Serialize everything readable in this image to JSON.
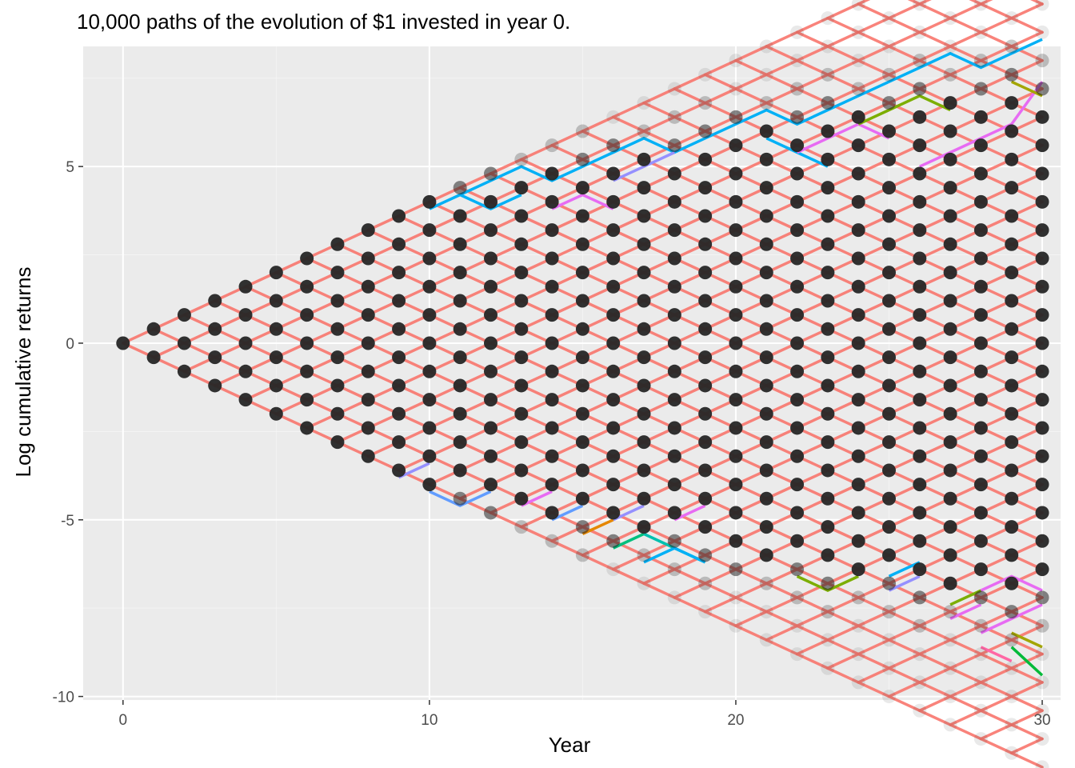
{
  "chart_data": {
    "type": "line",
    "title": "10,000 paths of the evolution of $1 invested in year 0.",
    "xlabel": "Year",
    "ylabel": "Log cumulative returns",
    "xlim": [
      -1.3,
      30.6
    ],
    "ylim": [
      -10.1,
      8.4
    ],
    "x_ticks": [
      0,
      10,
      20,
      30
    ],
    "y_ticks": [
      -10,
      -5,
      0,
      5
    ],
    "x_tick_labels": [
      "0",
      "10",
      "20",
      "30"
    ],
    "y_tick_labels": [
      "-10",
      "-5",
      "0",
      "5"
    ],
    "grid": true,
    "legend": "none",
    "step_per_year": 0.4,
    "years": 30,
    "colors": {
      "panel": "#ebebeb",
      "grid_major": "#ffffff",
      "lattice_line": "#f8766d",
      "point_dark": "#262626"
    },
    "series": [
      {
        "color": "#00b0f6",
        "points": [
          [
            10,
            3.8
          ],
          [
            11,
            4.2
          ],
          [
            12,
            4.6
          ],
          [
            13,
            5.0
          ],
          [
            14,
            4.6
          ],
          [
            15,
            5.0
          ],
          [
            16,
            5.4
          ],
          [
            17,
            5.8
          ],
          [
            18,
            5.4
          ],
          [
            19,
            5.8
          ],
          [
            20,
            6.2
          ],
          [
            21,
            6.6
          ],
          [
            22,
            6.2
          ],
          [
            23,
            6.6
          ],
          [
            24,
            7.0
          ],
          [
            25,
            7.4
          ],
          [
            26,
            7.8
          ],
          [
            27,
            8.2
          ],
          [
            28,
            7.8
          ],
          [
            29,
            8.2
          ],
          [
            30,
            8.6
          ]
        ]
      },
      {
        "color": "#00b0f6",
        "points": [
          [
            11,
            4.2
          ],
          [
            12,
            3.8
          ],
          [
            13,
            4.2
          ]
        ]
      },
      {
        "color": "#00b0f6",
        "points": [
          [
            21,
            5.8
          ],
          [
            22,
            5.4
          ],
          [
            23,
            5.0
          ]
        ]
      },
      {
        "color": "#e76bf3",
        "points": [
          [
            14,
            3.8
          ],
          [
            15,
            4.2
          ],
          [
            16,
            3.8
          ]
        ]
      },
      {
        "color": "#9590ff",
        "points": [
          [
            16,
            4.6
          ],
          [
            17,
            5.0
          ],
          [
            18,
            5.4
          ]
        ]
      },
      {
        "color": "#e76bf3",
        "points": [
          [
            22,
            5.4
          ],
          [
            23,
            5.8
          ],
          [
            24,
            6.2
          ],
          [
            25,
            5.8
          ]
        ]
      },
      {
        "color": "#7cae00",
        "points": [
          [
            24,
            6.2
          ],
          [
            25,
            6.6
          ],
          [
            26,
            7.0
          ],
          [
            27,
            6.6
          ]
        ]
      },
      {
        "color": "#e76bf3",
        "points": [
          [
            26,
            5.0
          ],
          [
            27,
            5.4
          ],
          [
            28,
            5.8
          ],
          [
            29,
            6.2
          ],
          [
            30,
            7.4
          ]
        ]
      },
      {
        "color": "#a3a500",
        "points": [
          [
            29,
            7.4
          ],
          [
            30,
            7.0
          ]
        ]
      },
      {
        "color": "#9590ff",
        "points": [
          [
            9,
            -3.8
          ],
          [
            10,
            -3.4
          ]
        ]
      },
      {
        "color": "#619cff",
        "points": [
          [
            10,
            -4.2
          ],
          [
            11,
            -4.6
          ],
          [
            12,
            -4.2
          ]
        ]
      },
      {
        "color": "#e76bf3",
        "points": [
          [
            13,
            -4.6
          ],
          [
            14,
            -4.2
          ]
        ]
      },
      {
        "color": "#619cff",
        "points": [
          [
            14,
            -5.0
          ],
          [
            15,
            -4.6
          ]
        ]
      },
      {
        "color": "#e58700",
        "points": [
          [
            15,
            -5.4
          ],
          [
            16,
            -5.0
          ]
        ]
      },
      {
        "color": "#9590ff",
        "points": [
          [
            16,
            -5.0
          ],
          [
            17,
            -4.6
          ]
        ]
      },
      {
        "color": "#00bf7d",
        "points": [
          [
            16,
            -5.8
          ],
          [
            17,
            -5.4
          ]
        ]
      },
      {
        "color": "#00c0af",
        "points": [
          [
            17,
            -5.4
          ],
          [
            18,
            -5.8
          ],
          [
            19,
            -6.2
          ]
        ]
      },
      {
        "color": "#00b0f6",
        "points": [
          [
            17,
            -6.2
          ],
          [
            18,
            -5.8
          ],
          [
            19,
            -6.2
          ]
        ]
      },
      {
        "color": "#e76bf3",
        "points": [
          [
            18,
            -5.0
          ],
          [
            19,
            -4.6
          ]
        ]
      },
      {
        "color": "#7cae00",
        "points": [
          [
            22,
            -6.6
          ],
          [
            23,
            -7.0
          ],
          [
            24,
            -6.6
          ]
        ]
      },
      {
        "color": "#00b0f6",
        "points": [
          [
            25,
            -6.6
          ],
          [
            26,
            -6.2
          ]
        ]
      },
      {
        "color": "#9590ff",
        "points": [
          [
            25,
            -7.0
          ],
          [
            26,
            -6.6
          ]
        ]
      },
      {
        "color": "#7cae00",
        "points": [
          [
            27,
            -7.4
          ],
          [
            28,
            -7.0
          ]
        ]
      },
      {
        "color": "#e76bf3",
        "points": [
          [
            27,
            -7.8
          ],
          [
            28,
            -7.4
          ]
        ]
      },
      {
        "color": "#e76bf3",
        "points": [
          [
            28,
            -8.2
          ],
          [
            29,
            -7.8
          ],
          [
            30,
            -7.4
          ]
        ]
      },
      {
        "color": "#e76bf3",
        "points": [
          [
            28,
            -7.0
          ],
          [
            29,
            -6.6
          ],
          [
            30,
            -7.0
          ]
        ]
      },
      {
        "color": "#a3a500",
        "points": [
          [
            29,
            -8.2
          ],
          [
            30,
            -8.6
          ]
        ]
      },
      {
        "color": "#00ba38",
        "points": [
          [
            29,
            -8.6
          ],
          [
            30,
            -9.4
          ]
        ]
      },
      {
        "color": "#ff67a4",
        "points": [
          [
            28,
            -8.6
          ],
          [
            29,
            -9.0
          ]
        ]
      }
    ]
  }
}
